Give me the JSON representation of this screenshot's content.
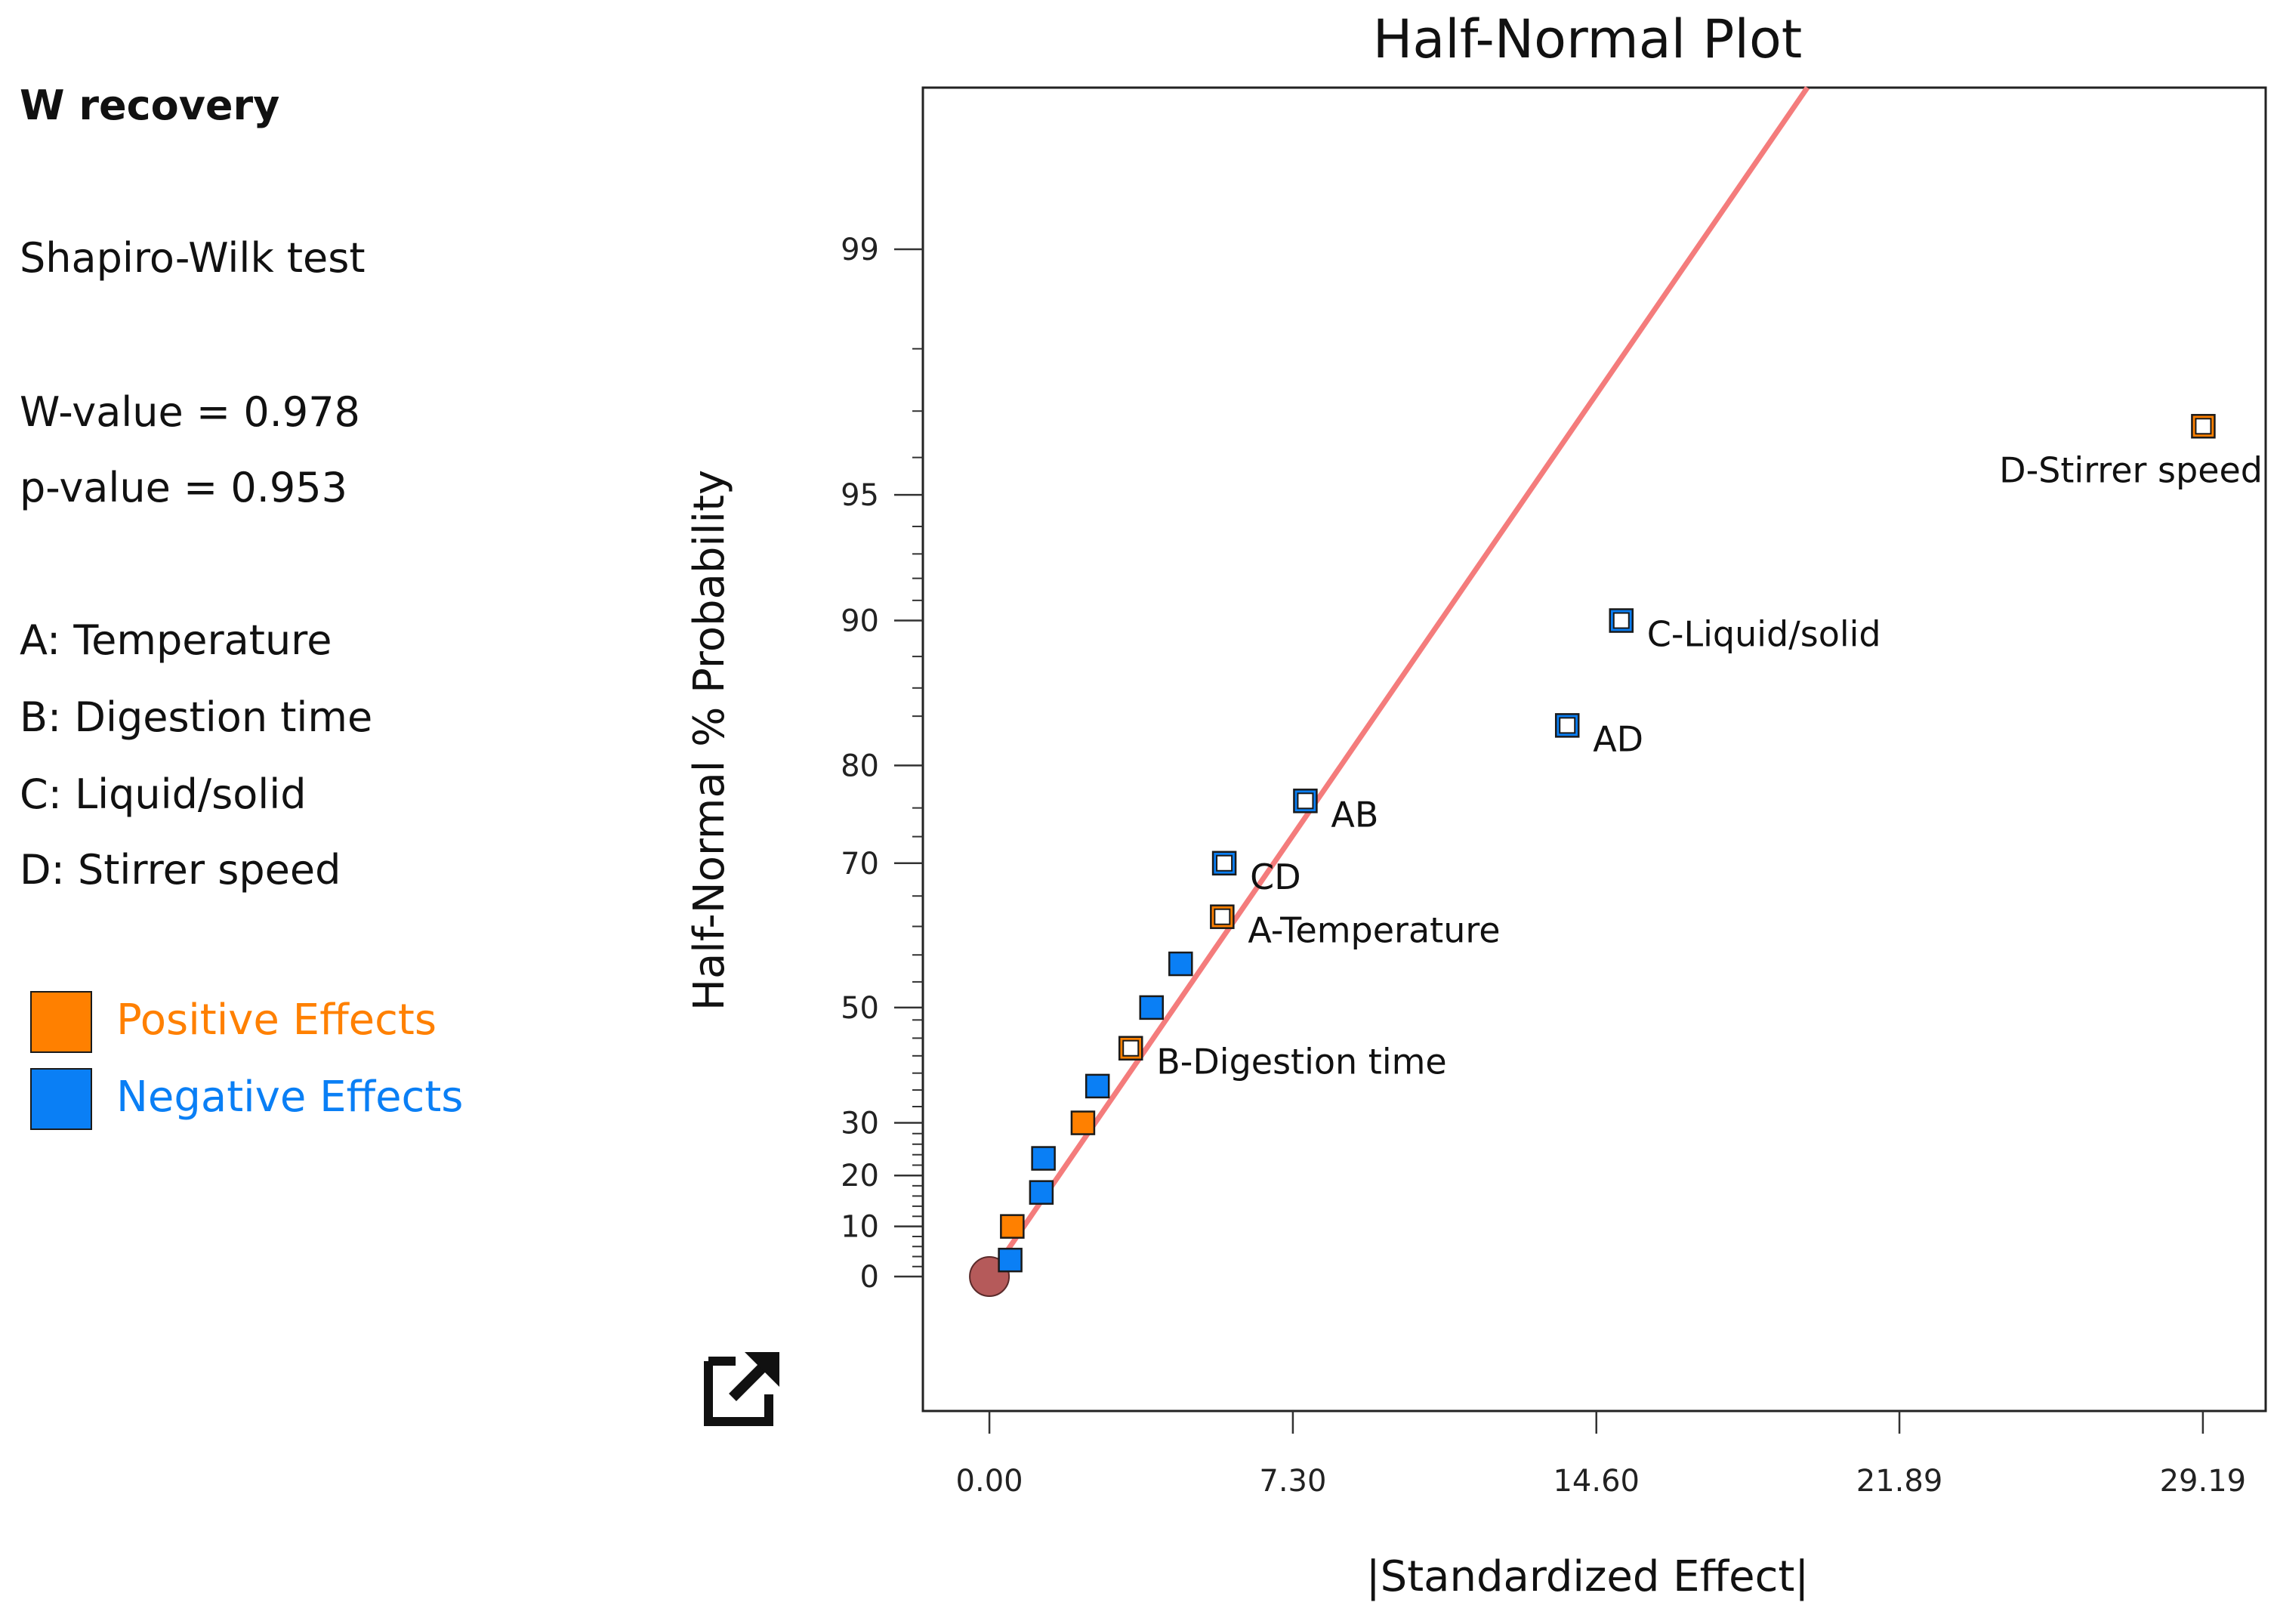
{
  "side_panel": {
    "response_title": "W recovery",
    "test_name": "Shapiro-Wilk test",
    "w_value": "W-value = 0.978",
    "p_value": "p-value = 0.953",
    "factors": [
      "A: Temperature",
      "B: Digestion time",
      "C: Liquid/solid",
      "D: Stirrer speed"
    ],
    "legend": [
      {
        "label": "Positive Effects",
        "color": "#ff8000"
      },
      {
        "label": "Negative Effects",
        "color": "#0a7ff5"
      }
    ]
  },
  "icons": {
    "export": "export-icon"
  },
  "chart_data": {
    "type": "scatter",
    "title": "Half-Normal Plot",
    "xlabel": "|Standardized Effect|",
    "ylabel": "Half-Normal % Probability",
    "xlim": [
      -1.6,
      30.7
    ],
    "x_ticks": [
      0.0,
      7.3,
      14.6,
      21.89,
      29.19
    ],
    "x_tick_labels": [
      "0.00",
      "7.30",
      "14.60",
      "21.89",
      "29.19"
    ],
    "y_tick_labels": [
      "0",
      "10",
      "20",
      "30",
      "50",
      "70",
      "80",
      "90",
      "95",
      "99"
    ],
    "y_tick_values": [
      0,
      10,
      20,
      30,
      50,
      70,
      80,
      90,
      95,
      99
    ],
    "grid": false,
    "reference_line": {
      "color": "#f47c7c",
      "slope_per_sd": 6.6
    },
    "origin_marker": {
      "x": 0,
      "y": 0,
      "color": "#b55a5a"
    },
    "colors": {
      "positive": "#ff8000",
      "negative": "#0a7ff5"
    },
    "points": [
      {
        "label": "",
        "x": 0.5,
        "y": 3.3,
        "effect": "negative",
        "selected": false
      },
      {
        "label": "",
        "x": 0.55,
        "y": 10,
        "effect": "positive",
        "selected": false
      },
      {
        "label": "",
        "x": 1.25,
        "y": 16.7,
        "effect": "negative",
        "selected": false
      },
      {
        "label": "",
        "x": 1.3,
        "y": 23.3,
        "effect": "negative",
        "selected": false
      },
      {
        "label": "",
        "x": 2.25,
        "y": 30,
        "effect": "positive",
        "selected": false
      },
      {
        "label": "",
        "x": 2.6,
        "y": 36.7,
        "effect": "negative",
        "selected": false
      },
      {
        "label": "B-Digestion time",
        "x": 3.4,
        "y": 43.3,
        "effect": "positive",
        "selected": true
      },
      {
        "label": "",
        "x": 3.9,
        "y": 50,
        "effect": "negative",
        "selected": false
      },
      {
        "label": "",
        "x": 4.6,
        "y": 56.7,
        "effect": "negative",
        "selected": false
      },
      {
        "label": "A-Temperature",
        "x": 5.6,
        "y": 63.3,
        "effect": "positive",
        "selected": true
      },
      {
        "label": "CD",
        "x": 5.65,
        "y": 70,
        "effect": "negative",
        "selected": true
      },
      {
        "label": "AB",
        "x": 7.6,
        "y": 76.7,
        "effect": "negative",
        "selected": true
      },
      {
        "label": "AD",
        "x": 13.9,
        "y": 83.3,
        "effect": "negative",
        "selected": true
      },
      {
        "label": "C-Liquid/solid",
        "x": 15.2,
        "y": 90,
        "effect": "negative",
        "selected": true
      },
      {
        "label": "D-Stirrer speed",
        "x": 29.2,
        "y": 96.7,
        "effect": "positive",
        "selected": true
      }
    ]
  }
}
